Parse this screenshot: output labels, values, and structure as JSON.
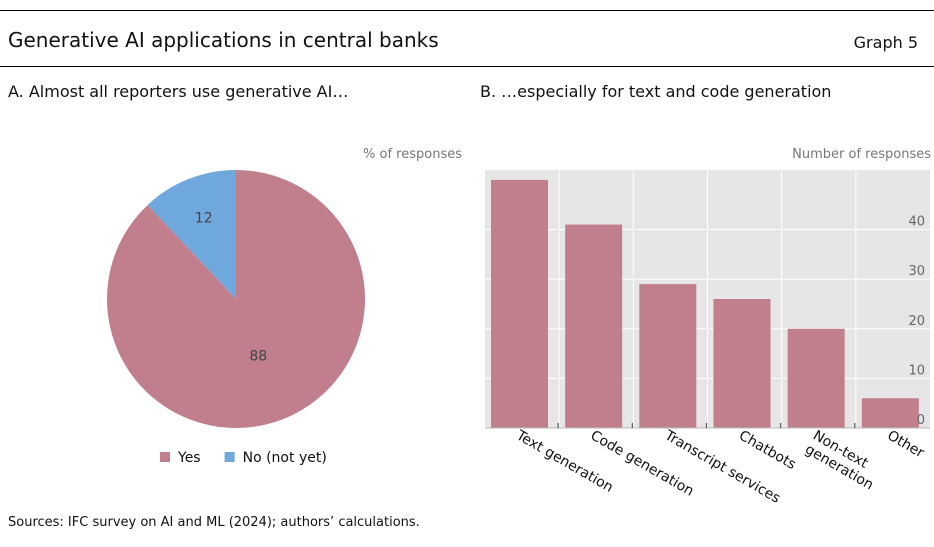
{
  "header": {
    "title": "Generative AI applications in central banks",
    "graph_label": "Graph 5"
  },
  "panels": {
    "a_title": "A. Almost all reporters use generative AI…",
    "a_unit": "% of responses",
    "b_title": "B. …especially for text and code generation",
    "b_unit": "Number of responses"
  },
  "footer": {
    "source": "Sources: IFC survey on AI and ML (2024); authors’ calculations."
  },
  "colors": {
    "yes": "#c17f8e",
    "no": "#6fa8dc",
    "plot_bg": "#e6e6e6"
  },
  "chart_data": [
    {
      "type": "pie",
      "title": "A. Almost all reporters use generative AI…",
      "unit": "% of responses",
      "slices": [
        {
          "label": "Yes",
          "value": 88,
          "color": "#c17f8e"
        },
        {
          "label": "No (not yet)",
          "value": 12,
          "color": "#6fa8dc"
        }
      ],
      "legend_placement": "bottom"
    },
    {
      "type": "bar",
      "title": "B. …especially for text and code generation",
      "ylabel": "Number of responses",
      "categories": [
        "Text generation",
        "Code generation",
        "Transcript services",
        "Chatbots",
        "Non-text generation",
        "Other"
      ],
      "category_lines": [
        [
          "Text generation"
        ],
        [
          "Code generation"
        ],
        [
          "Transcript services"
        ],
        [
          "Chatbots"
        ],
        [
          "Non-text",
          "generation"
        ],
        [
          "Other"
        ]
      ],
      "values": [
        50,
        41,
        29,
        26,
        20,
        6
      ],
      "ylim": [
        0,
        52
      ],
      "yticks": [
        0,
        10,
        20,
        30,
        40
      ],
      "y_axis_side": "right",
      "grid": true,
      "color": "#c17f8e"
    }
  ]
}
